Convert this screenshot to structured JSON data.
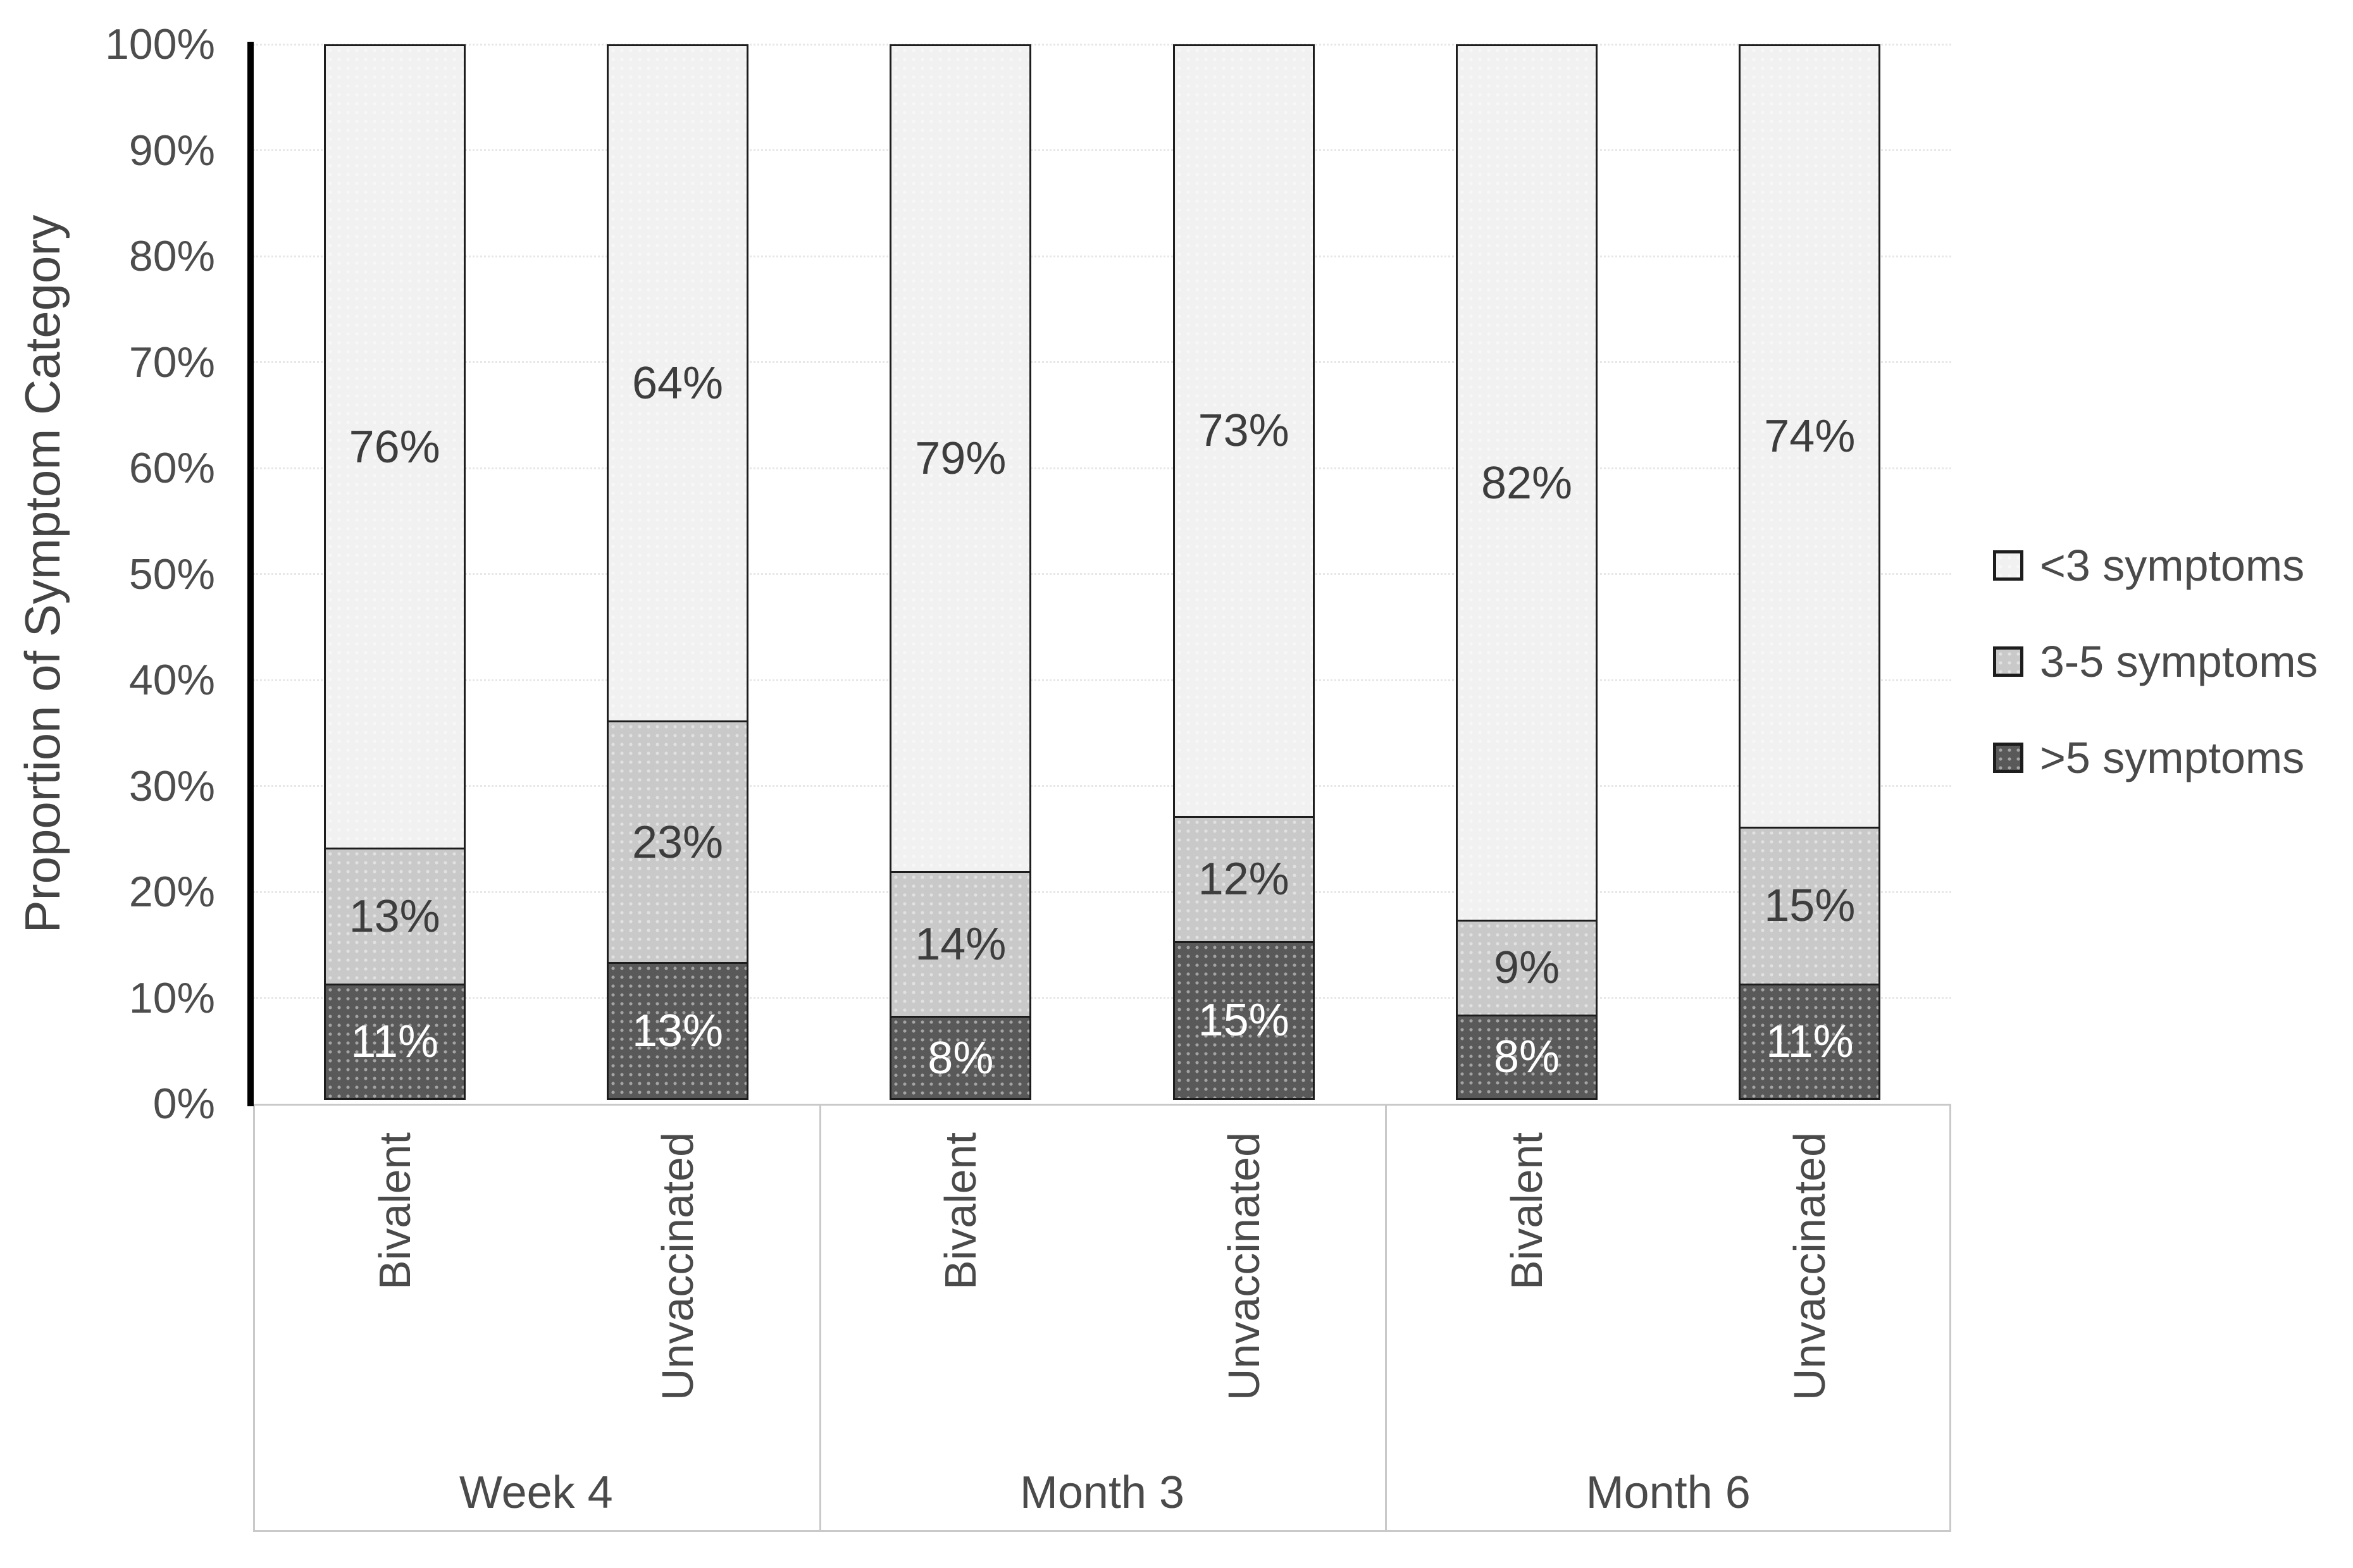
{
  "chart_data": {
    "type": "bar",
    "stacked": true,
    "percent_stacked": true,
    "title": "",
    "xlabel": "",
    "ylabel": "Proportion of Symptom Category",
    "ylim": [
      0,
      100
    ],
    "ytick_step": 10,
    "grid": "horizontal-dotted",
    "legend_position": "right",
    "yticks": [
      "0%",
      "10%",
      "20%",
      "30%",
      "40%",
      "50%",
      "60%",
      "70%",
      "80%",
      "90%",
      "100%"
    ],
    "groups": [
      "Week 4",
      "Month 3",
      "Month 6"
    ],
    "categories": [
      "Bivalent",
      "Unvaccinated",
      "Bivalent",
      "Unvaccinated",
      "Bivalent",
      "Unvaccinated"
    ],
    "series": [
      {
        "name": ">5 symptoms",
        "color": "#595959",
        "label_color": "#ffffff",
        "values": [
          11,
          13,
          8,
          15,
          8,
          11
        ]
      },
      {
        "name": "3-5 symptoms",
        "color": "#c9c9c9",
        "label_color": "#3d3d3d",
        "values": [
          13,
          23,
          14,
          12,
          9,
          15
        ]
      },
      {
        "name": "<3 symptoms",
        "color": "#f1f1f1",
        "label_color": "#3d3d3d",
        "values": [
          76,
          64,
          79,
          73,
          82,
          74
        ]
      }
    ],
    "legend": [
      {
        "label": "<3 symptoms",
        "color": "#f1f1f1"
      },
      {
        "label": "3-5 symptoms",
        "color": "#c9c9c9"
      },
      {
        "label": ">5 symptoms",
        "color": "#595959"
      }
    ]
  }
}
